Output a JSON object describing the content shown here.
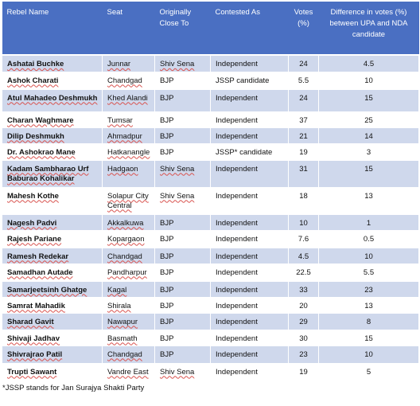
{
  "headers": {
    "rebel_name": "Rebel Name",
    "seat": "Seat",
    "originally_close_to": "Originally Close To",
    "contested_as": "Contested As",
    "votes": "Votes (%)",
    "difference": "Difference in votes (%) between UPA and NDA candidate"
  },
  "rows": [
    {
      "name": "Ashatai Buchke",
      "seat": "Junnar",
      "close_to": "Shiv Sena",
      "contested_as": "Independent",
      "votes": "24",
      "difference": "4.5"
    },
    {
      "name": "Ashok Charati",
      "seat": "Chandgad",
      "close_to": "BJP",
      "contested_as": "JSSP candidate",
      "votes": "5.5",
      "difference": "10"
    },
    {
      "name": "Atul Mahadeo Deshmukh",
      "seat": "Khed Alandi",
      "close_to": "BJP",
      "contested_as": "Independent",
      "votes": "24",
      "difference": "15"
    },
    {
      "name": "Charan Waghmare",
      "seat": "Tumsar",
      "close_to": "BJP",
      "contested_as": "Independent",
      "votes": "37",
      "difference": "25"
    },
    {
      "name": "Dilip Deshmukh",
      "seat": "Ahmadpur",
      "close_to": "BJP",
      "contested_as": "Independent",
      "votes": "21",
      "difference": "14"
    },
    {
      "name": "Dr. Ashokrao Mane",
      "seat": "Hatkanangle",
      "close_to": "BJP",
      "contested_as": "JSSP* candidate",
      "votes": "19",
      "difference": "3"
    },
    {
      "name": "Kadam Sambharao Urf Baburao Kohalikar",
      "seat": "Hadgaon",
      "close_to": "Shiv Sena",
      "contested_as": "Independent",
      "votes": "31",
      "difference": "15"
    },
    {
      "name": "Mahesh Kothe",
      "seat": "Solapur City Central",
      "close_to": "Shiv Sena",
      "contested_as": "Independent",
      "votes": "18",
      "difference": "13"
    },
    {
      "name": "Nagesh Padvi",
      "seat": "Akkalkuwa",
      "close_to": "BJP",
      "contested_as": "Independent",
      "votes": "10",
      "difference": "1"
    },
    {
      "name": "Rajesh Pariane",
      "seat": "Kopargaon",
      "close_to": "BJP",
      "contested_as": "Independent",
      "votes": "7.6",
      "difference": "0.5"
    },
    {
      "name": "Ramesh Redekar",
      "seat": "Chandgad",
      "close_to": "BJP",
      "contested_as": "Independent",
      "votes": "4.5",
      "difference": "10"
    },
    {
      "name": "Samadhan Autade",
      "seat": "Pandharpur",
      "close_to": "BJP",
      "contested_as": "Independent",
      "votes": "22.5",
      "difference": "5.5"
    },
    {
      "name": "Samarjeetsinh Ghatge",
      "seat": "Kagal",
      "close_to": "BJP",
      "contested_as": "Independent",
      "votes": "33",
      "difference": "23"
    },
    {
      "name": "Samrat Mahadik",
      "seat": "Shirala",
      "close_to": "BJP",
      "contested_as": "Independent",
      "votes": "20",
      "difference": "13"
    },
    {
      "name": "Sharad Gavit",
      "seat": "Nawapur",
      "close_to": "BJP",
      "contested_as": "Independent",
      "votes": "29",
      "difference": "8"
    },
    {
      "name": "Shivaji Jadhav",
      "seat": "Basmath",
      "close_to": "BJP",
      "contested_as": "Independent",
      "votes": "30",
      "difference": "15"
    },
    {
      "name": "Shivrajrao Patil",
      "seat": "Chandgad",
      "close_to": "BJP",
      "contested_as": "Independent",
      "votes": "23",
      "difference": "10"
    },
    {
      "name": "Trupti Sawant",
      "seat": "Vandre East",
      "close_to": "Shiv Sena",
      "contested_as": "Independent",
      "votes": "19",
      "difference": "5"
    }
  ],
  "footnote": "*JSSP stands for Jan Surajya Shakti Party",
  "colors": {
    "header_bg": "#4a6fc2",
    "band_bg": "#cfd8ec"
  }
}
